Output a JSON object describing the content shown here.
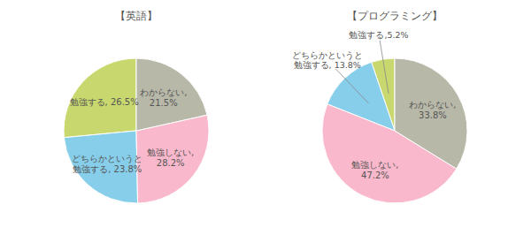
{
  "chart_data": [
    {
      "type": "pie",
      "title": "【英語】",
      "values": [
        26.5,
        23.8,
        28.2,
        21.5
      ],
      "value_labels": [
        "勉強する, 26.5%",
        "どちらかというと\n勉強する, 23.8%",
        "勉強しない,\n28.2%",
        "わからない,\n21.5%"
      ],
      "colors": [
        "#c8d86e",
        "#87ceeb",
        "#f9b8cb",
        "#b8b8a8"
      ],
      "data_labels": true
    },
    {
      "type": "pie",
      "title": "【プログラミング】",
      "values": [
        5.2,
        13.8,
        47.2,
        33.8
      ],
      "value_labels": [
        "勉強する,5.2%",
        "どちらかというと\n勉強する, 13.8%",
        "勉強しない,\n47.2%",
        "わからない,\n33.8%"
      ],
      "colors": [
        "#c8d86e",
        "#87ceeb",
        "#f9b8cb",
        "#b8b8a8"
      ],
      "data_labels": true
    }
  ]
}
